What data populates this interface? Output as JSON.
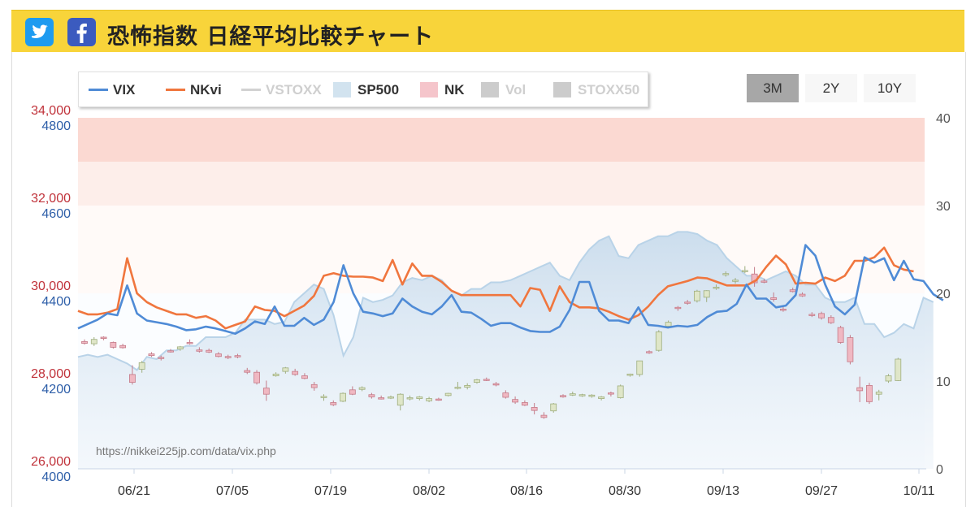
{
  "header": {
    "title": "恐怖指数 日経平均比較チャート",
    "twitter_icon": "twitter-bird-icon",
    "facebook_icon": "facebook-f-icon"
  },
  "legend": {
    "items": [
      {
        "label": "VIX",
        "color": "#4f8bd6",
        "symbol": "line",
        "active": true
      },
      {
        "label": "NKvi",
        "color": "#f0763e",
        "symbol": "line",
        "active": true
      },
      {
        "label": "VSTOXX",
        "color": "#d2d2d2",
        "symbol": "line",
        "active": false
      },
      {
        "label": "SP500",
        "color": "#d2e3ef",
        "symbol": "box",
        "active": true
      },
      {
        "label": "NK",
        "color": "#f5c5cb",
        "symbol": "box",
        "active": true
      },
      {
        "label": "Vol",
        "color": "#cccccc",
        "symbol": "box",
        "active": false
      },
      {
        "label": "STOXX50",
        "color": "#cccccc",
        "symbol": "box",
        "active": false
      }
    ]
  },
  "range_buttons": [
    {
      "label": "3M",
      "active": true
    },
    {
      "label": "2Y",
      "active": false
    },
    {
      "label": "10Y",
      "active": false
    }
  ],
  "watermark": "https://nikkei225jp.com/data/vix.php",
  "chart_data": {
    "type": "line",
    "x_tick_labels": [
      "06/21",
      "07/05",
      "07/19",
      "08/02",
      "08/16",
      "08/30",
      "09/13",
      "09/27",
      "10/11"
    ],
    "nk_axis": {
      "ticks": [
        "34,000",
        "32,000",
        "30,000",
        "28,000",
        "26,000"
      ],
      "range": [
        26000,
        34000
      ],
      "color": "#c0323a"
    },
    "sp_axis": {
      "ticks": [
        "4800",
        "4600",
        "4400",
        "4200",
        "4000"
      ],
      "range": [
        4000,
        4800
      ],
      "color": "#2d5ea8"
    },
    "vol_axis": {
      "ticks": [
        "40",
        "30",
        "20",
        "10",
        "0"
      ],
      "range": [
        0,
        40
      ],
      "color": "#555555"
    },
    "bands": [
      {
        "from": 35,
        "to": 40,
        "color": "#fbd9d2"
      },
      {
        "from": 30,
        "to": 35,
        "color": "#fdeeea"
      },
      {
        "from": 20,
        "to": 30,
        "color": "#fffaf8"
      }
    ],
    "series": [
      {
        "name": "VIX",
        "axis": "vol",
        "color": "#4f8bd6",
        "values": [
          16.0,
          16.5,
          17.0,
          17.7,
          17.5,
          20.9,
          17.7,
          16.9,
          16.7,
          16.5,
          16.2,
          15.8,
          15.9,
          16.2,
          16.0,
          15.7,
          15.4,
          16.0,
          16.8,
          16.5,
          18.5,
          16.3,
          16.3,
          17.2,
          16.4,
          17.0,
          19.0,
          23.2,
          20.0,
          17.9,
          17.7,
          17.4,
          17.7,
          19.4,
          18.5,
          17.9,
          17.6,
          18.5,
          19.8,
          17.9,
          17.8,
          17.1,
          16.3,
          16.6,
          16.6,
          16.1,
          15.7,
          15.6,
          15.6,
          16.2,
          18.1,
          21.3,
          21.3,
          18.0,
          16.9,
          16.9,
          16.6,
          18.4,
          16.4,
          16.3,
          16.1,
          16.3,
          16.2,
          16.4,
          17.3,
          17.9,
          18.0,
          18.8,
          21.0,
          19.4,
          19.4,
          18.4,
          18.6,
          19.8,
          25.5,
          24.3,
          21.0,
          18.5,
          17.6,
          18.7,
          24.1,
          23.5,
          24.0,
          21.5,
          23.7,
          21.6,
          21.4,
          19.9,
          19.2
        ]
      },
      {
        "name": "NKvi",
        "axis": "vol",
        "color": "#f0763e",
        "values": [
          18.0,
          17.6,
          17.6,
          17.8,
          18.2,
          24.0,
          20.0,
          19.0,
          18.4,
          18.0,
          17.6,
          17.6,
          17.2,
          17.4,
          16.9,
          16.0,
          16.4,
          16.8,
          18.5,
          18.1,
          18.0,
          17.4,
          18.0,
          18.6,
          19.7,
          22.0,
          22.3,
          22.0,
          21.9,
          21.9,
          21.8,
          21.4,
          23.8,
          21.0,
          23.4,
          22.0,
          22.0,
          21.3,
          20.3,
          19.8,
          19.8,
          19.8,
          19.8,
          19.8,
          19.8,
          18.5,
          20.6,
          20.4,
          18.0,
          20.8,
          19.0,
          18.4,
          18.4,
          18.3,
          17.9,
          17.4,
          17.0,
          17.5,
          18.5,
          19.8,
          20.8,
          21.1,
          21.4,
          21.8,
          21.7,
          21.3,
          20.9,
          20.9,
          20.9,
          21.5,
          23.0,
          24.3,
          23.3,
          21.1,
          21.2,
          21.1,
          21.8,
          21.4,
          22.0,
          23.7,
          23.7,
          24.1,
          25.2,
          23.2,
          22.7,
          22.5
        ]
      },
      {
        "name": "SP500",
        "axis": "sp",
        "color": "#d2e3ef",
        "values": [
          4255,
          4260,
          4255,
          4260,
          4250,
          4240,
          4225,
          4255,
          4250,
          4270,
          4270,
          4280,
          4280,
          4300,
          4300,
          4300,
          4310,
          4340,
          4340,
          4340,
          4330,
          4335,
          4380,
          4400,
          4420,
          4410,
          4350,
          4258,
          4300,
          4390,
          4380,
          4385,
          4395,
          4425,
          4435,
          4430,
          4440,
          4430,
          4405,
          4395,
          4410,
          4410,
          4425,
          4425,
          4430,
          4440,
          4450,
          4460,
          4470,
          4440,
          4430,
          4470,
          4500,
          4520,
          4530,
          4485,
          4480,
          4510,
          4520,
          4530,
          4530,
          4540,
          4540,
          4535,
          4520,
          4510,
          4480,
          4460,
          4440,
          4440,
          4430,
          4440,
          4450,
          4440,
          4420,
          4420,
          4390,
          4380,
          4380,
          4390,
          4330,
          4330,
          4300,
          4310,
          4330,
          4320,
          4390,
          4380
        ]
      }
    ],
    "nk_candles_note": "Nikkei 225 daily candlesticks (pink = down, green = up), read on left red axis",
    "nk_candles": [
      [
        28900,
        28950,
        28830,
        28860
      ],
      [
        28850,
        29000,
        28800,
        28950
      ],
      [
        29000,
        29020,
        28930,
        28970
      ],
      [
        28880,
        28900,
        28740,
        28770
      ],
      [
        28810,
        28850,
        28740,
        28760
      ],
      [
        28150,
        28360,
        27920,
        27970
      ],
      [
        28270,
        28460,
        28190,
        28420
      ],
      [
        28620,
        28660,
        28550,
        28580
      ],
      [
        28540,
        28580,
        28470,
        28520
      ],
      [
        28690,
        28730,
        28650,
        28670
      ],
      [
        28730,
        28800,
        28690,
        28780
      ],
      [
        28880,
        28950,
        28830,
        28870
      ],
      [
        28710,
        28770,
        28650,
        28680
      ],
      [
        28700,
        28740,
        28640,
        28660
      ],
      [
        28620,
        28660,
        28540,
        28560
      ],
      [
        28560,
        28600,
        28500,
        28540
      ],
      [
        28580,
        28620,
        28520,
        28550
      ],
      [
        28240,
        28300,
        28160,
        28200
      ],
      [
        28200,
        28250,
        27920,
        27960
      ],
      [
        27840,
        28010,
        27550,
        27700
      ],
      [
        28120,
        28200,
        28100,
        28160
      ],
      [
        28220,
        28320,
        28170,
        28300
      ],
      [
        28220,
        28280,
        28120,
        28150
      ],
      [
        28120,
        28180,
        28040,
        28060
      ],
      [
        27920,
        27980,
        27780,
        27850
      ],
      [
        27640,
        27700,
        27550,
        27650
      ],
      [
        27510,
        27560,
        27430,
        27460
      ],
      [
        27540,
        27740,
        27520,
        27720
      ],
      [
        27800,
        27880,
        27680,
        27700
      ],
      [
        27810,
        27880,
        27770,
        27850
      ],
      [
        27690,
        27730,
        27600,
        27640
      ],
      [
        27620,
        27670,
        27580,
        27590
      ],
      [
        27610,
        27670,
        27590,
        27640
      ],
      [
        27450,
        27720,
        27330,
        27700
      ],
      [
        27600,
        27670,
        27560,
        27620
      ],
      [
        27600,
        27660,
        27560,
        27640
      ],
      [
        27550,
        27640,
        27520,
        27600
      ],
      [
        27590,
        27620,
        27550,
        27570
      ],
      [
        27670,
        27730,
        27650,
        27720
      ],
      [
        27840,
        27980,
        27810,
        27860
      ],
      [
        27860,
        27950,
        27810,
        27900
      ],
      [
        27970,
        28050,
        27940,
        28030
      ],
      [
        28040,
        28080,
        28000,
        28020
      ],
      [
        27940,
        27980,
        27880,
        27910
      ],
      [
        27730,
        27790,
        27600,
        27630
      ],
      [
        27580,
        27650,
        27480,
        27520
      ],
      [
        27510,
        27560,
        27430,
        27450
      ],
      [
        27400,
        27500,
        27240,
        27330
      ],
      [
        27220,
        27290,
        27140,
        27170
      ],
      [
        27320,
        27500,
        27280,
        27480
      ],
      [
        27670,
        27700,
        27620,
        27640
      ],
      [
        27680,
        27760,
        27660,
        27710
      ],
      [
        27670,
        27710,
        27640,
        27690
      ],
      [
        27650,
        27700,
        27620,
        27680
      ],
      [
        27600,
        27660,
        27560,
        27640
      ],
      [
        27730,
        27760,
        27650,
        27710
      ],
      [
        27620,
        27920,
        27600,
        27890
      ],
      [
        28130,
        28170,
        28100,
        28160
      ],
      [
        28150,
        28460,
        28100,
        28460
      ],
      [
        28670,
        28700,
        28620,
        28650
      ],
      [
        28700,
        29160,
        28670,
        29120
      ],
      [
        29250,
        29380,
        29200,
        29340
      ],
      [
        29680,
        29710,
        29600,
        29660
      ],
      [
        29800,
        29850,
        29740,
        29790
      ],
      [
        29830,
        30080,
        29790,
        30050
      ],
      [
        29910,
        30070,
        29800,
        30060
      ],
      [
        30130,
        30200,
        30080,
        30140
      ],
      [
        30440,
        30500,
        30380,
        30450
      ],
      [
        30280,
        30350,
        30220,
        30300
      ],
      [
        30510,
        30620,
        30460,
        30520
      ],
      [
        30440,
        30600,
        30150,
        30240
      ],
      [
        30280,
        30330,
        30230,
        30270
      ],
      [
        29900,
        30020,
        29810,
        29860
      ],
      [
        29640,
        29700,
        29580,
        29620
      ],
      [
        30080,
        30130,
        30020,
        30040
      ],
      [
        29980,
        30020,
        29920,
        29940
      ],
      [
        29520,
        29570,
        29460,
        29500
      ],
      [
        29540,
        29580,
        29400,
        29440
      ],
      [
        29450,
        29500,
        29300,
        29330
      ],
      [
        29220,
        29260,
        28850,
        28880
      ],
      [
        28990,
        29050,
        28380,
        28440
      ],
      [
        27850,
        28100,
        27520,
        27780
      ],
      [
        27900,
        27960,
        27480,
        27530
      ],
      [
        27700,
        27800,
        27560,
        27750
      ],
      [
        28000,
        28160,
        27960,
        28120
      ],
      [
        28010,
        28530,
        28000,
        28500
      ]
    ]
  }
}
